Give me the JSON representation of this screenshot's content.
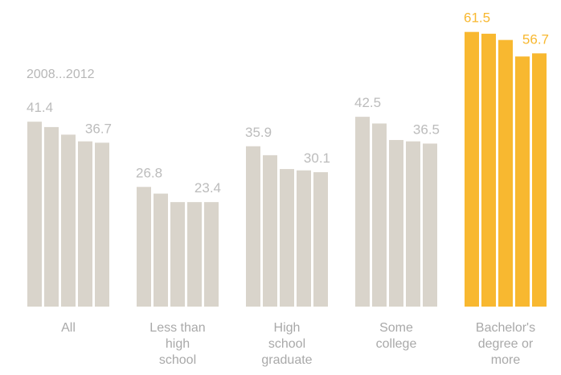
{
  "chart_data": {
    "type": "bar",
    "title": "",
    "xlabel": "",
    "ylabel": "",
    "series_range_label": "2008...2012",
    "ylim": [
      0,
      65
    ],
    "grid": false,
    "legend": "none",
    "years": [
      "2008",
      "2009",
      "2010",
      "2011",
      "2012"
    ],
    "colors": {
      "default": "#d9d4cb",
      "highlight": "#f8b830",
      "default_label": "#bcbcbc",
      "highlight_label": "#f8b830"
    },
    "groups": [
      {
        "category": "All",
        "values": [
          41.4,
          40.2,
          38.5,
          37.0,
          36.7
        ],
        "highlight": false,
        "first_label": "41.4",
        "last_label": "36.7"
      },
      {
        "category": "Less than high school",
        "values": [
          26.8,
          25.3,
          23.4,
          23.4,
          23.4
        ],
        "highlight": false,
        "first_label": "26.8",
        "last_label": "23.4"
      },
      {
        "category": "High school graduate",
        "values": [
          35.9,
          33.9,
          30.8,
          30.5,
          30.1
        ],
        "highlight": false,
        "first_label": "35.9",
        "last_label": "30.1"
      },
      {
        "category": "Some college",
        "values": [
          42.5,
          41.0,
          37.3,
          37.0,
          36.5
        ],
        "highlight": false,
        "first_label": "42.5",
        "last_label": "36.5"
      },
      {
        "category": "Bachelor's degree or more",
        "values": [
          61.5,
          61.1,
          59.7,
          56.0,
          56.7
        ],
        "highlight": true,
        "first_label": "61.5",
        "last_label": "56.7"
      }
    ]
  }
}
